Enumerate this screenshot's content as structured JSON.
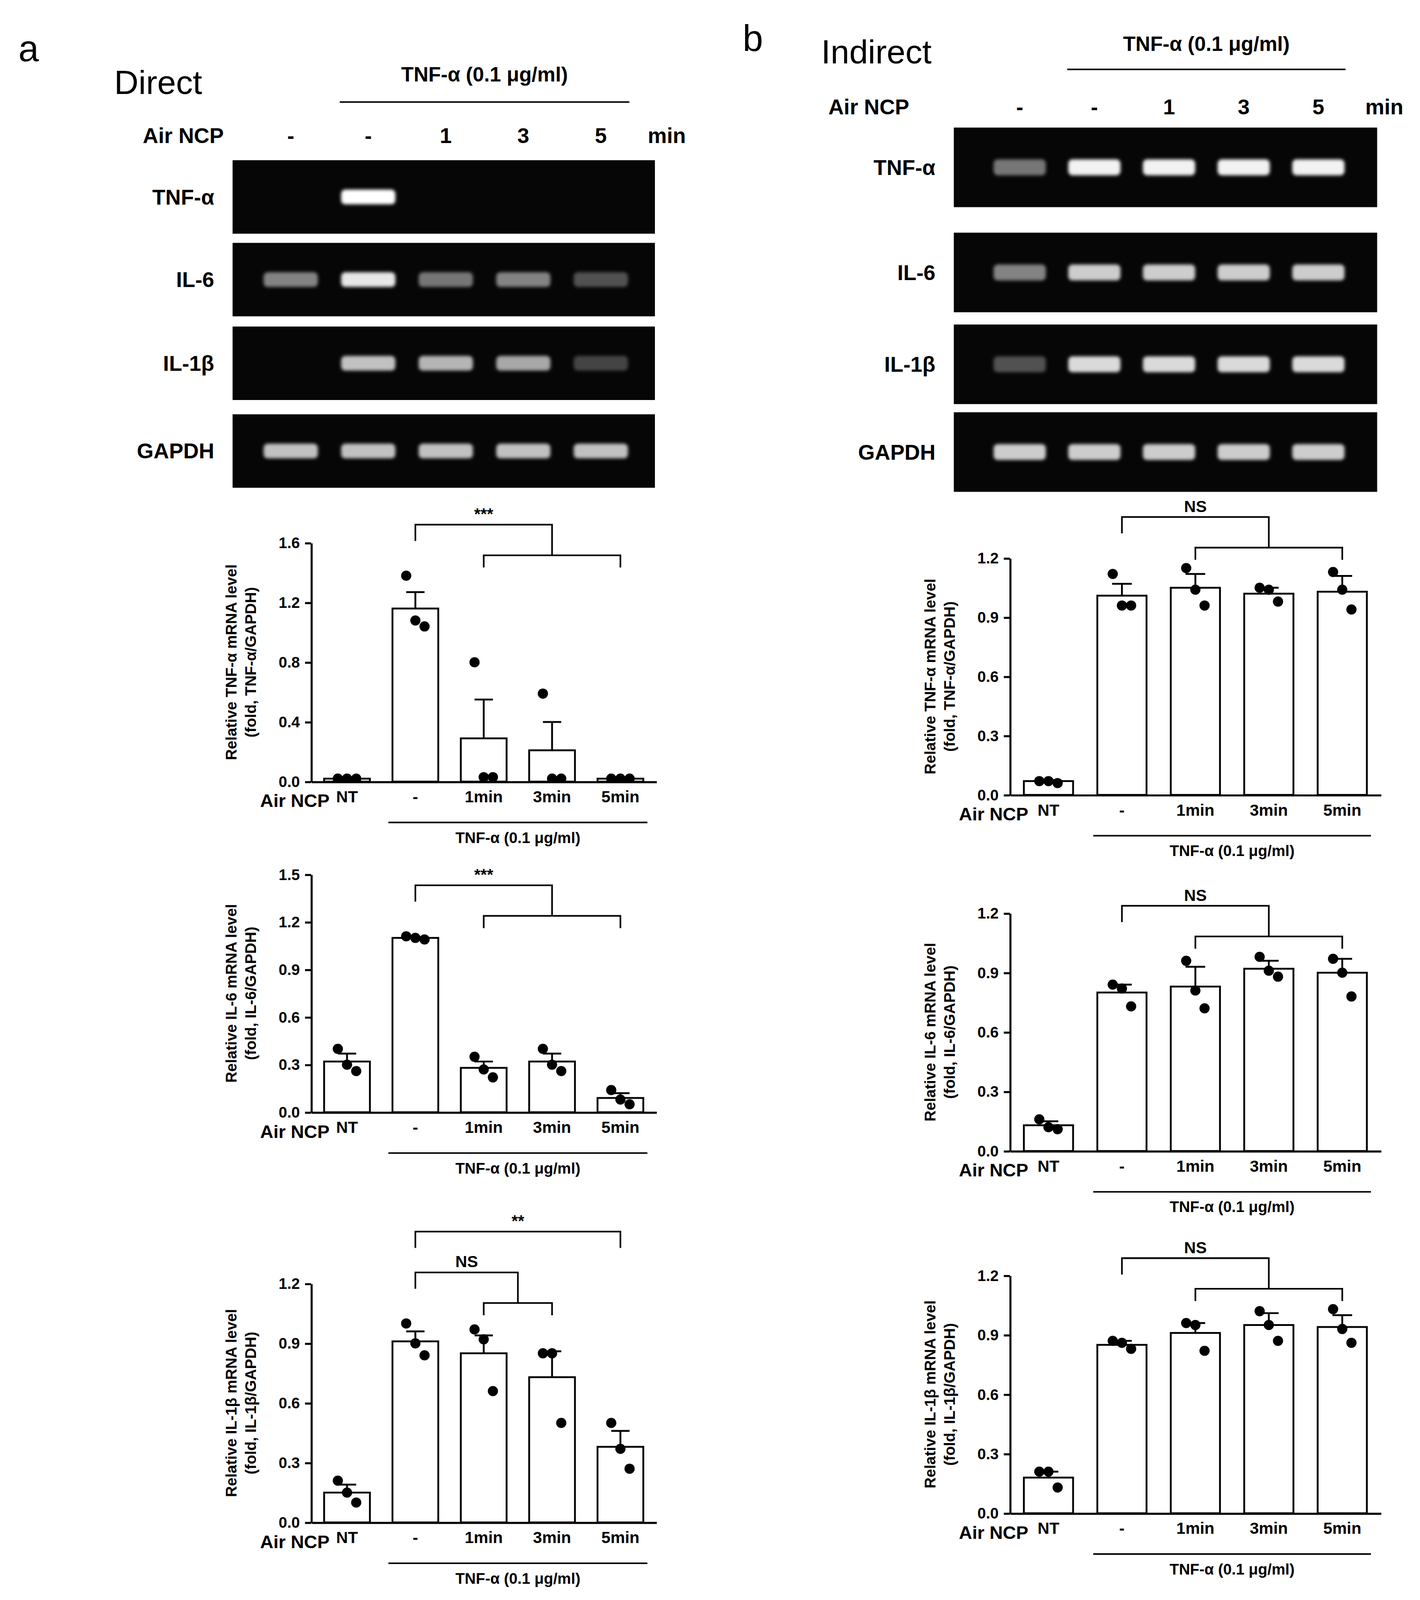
{
  "panels": [
    {
      "label": "a",
      "title": "Direct",
      "gel": {
        "treatment": "TNF-α (0.1 μg/ml)",
        "treated": [
          false,
          true,
          true,
          true,
          true
        ],
        "lane_title": "Air NCP",
        "lanes": [
          "-",
          "-",
          "1",
          "3",
          "5"
        ],
        "unit": "min",
        "rows": [
          {
            "name": "TNF-α",
            "intensity": [
              0,
              1.0,
              0,
              0,
              0
            ]
          },
          {
            "name": "IL-6",
            "intensity": [
              0.5,
              0.9,
              0.45,
              0.5,
              0.3
            ]
          },
          {
            "name": "IL-1β",
            "intensity": [
              0,
              0.75,
              0.7,
              0.65,
              0.25
            ]
          },
          {
            "name": "GAPDH",
            "intensity": [
              0.75,
              0.75,
              0.75,
              0.75,
              0.75
            ]
          }
        ]
      }
    },
    {
      "label": "b",
      "title": "Indirect",
      "gel": {
        "treatment": "TNF-α (0.1 μg/ml)",
        "treated": [
          false,
          true,
          true,
          true,
          true
        ],
        "lane_title": "Air NCP",
        "lanes": [
          "-",
          "-",
          "1",
          "3",
          "5"
        ],
        "unit": "min",
        "rows": [
          {
            "name": "TNF-α",
            "intensity": [
              0.45,
              0.95,
              0.95,
              0.95,
              0.95
            ]
          },
          {
            "name": "IL-6",
            "intensity": [
              0.5,
              0.8,
              0.8,
              0.8,
              0.8
            ]
          },
          {
            "name": "IL-1β",
            "intensity": [
              0.3,
              0.85,
              0.85,
              0.85,
              0.85
            ]
          },
          {
            "name": "GAPDH",
            "intensity": [
              0.8,
              0.8,
              0.8,
              0.8,
              0.8
            ]
          }
        ]
      }
    }
  ],
  "chart_data": [
    {
      "type": "bar",
      "ylabel": [
        "Relative TNF-α mRNA level",
        "(fold, TNF-α/GAPDH)"
      ],
      "xlabel": "Air NCP",
      "categories": [
        "NT",
        "-",
        "1min",
        "3min",
        "5min"
      ],
      "values": [
        0.02,
        1.16,
        0.29,
        0.21,
        0.02
      ],
      "errors": [
        0.003,
        0.11,
        0.26,
        0.19,
        0.003
      ],
      "points": [
        [
          0.02,
          0.02,
          0.02
        ],
        [
          1.38,
          1.08,
          1.04
        ],
        [
          0.8,
          0.03,
          0.03
        ],
        [
          0.59,
          0.02,
          0.02
        ],
        [
          0.02,
          0.02,
          0.02
        ]
      ],
      "color": "#ffffff",
      "ylim": [
        0,
        1.6
      ],
      "yticks": [
        {
          "value": 0,
          "label": "0.0"
        },
        0.4,
        0.8,
        1.2,
        1.6
      ],
      "xgroup": {
        "label": "TNF-α (0.1 μg/ml)",
        "categories": [
          "-",
          "1min",
          "3min",
          "5min"
        ]
      },
      "annotations": [
        {
          "text": "***",
          "from": "-",
          "to": [
            "1min",
            "5min"
          ]
        }
      ]
    },
    {
      "type": "bar",
      "ylabel": [
        "Relative IL-6 mRNA level",
        "(fold, IL-6/GAPDH)"
      ],
      "xlabel": "Air NCP",
      "categories": [
        "NT",
        "-",
        "1min",
        "3min",
        "5min"
      ],
      "values": [
        0.32,
        1.1,
        0.28,
        0.32,
        0.09
      ],
      "errors": [
        0.05,
        0.006,
        0.04,
        0.05,
        0.03
      ],
      "points": [
        [
          0.4,
          0.3,
          0.26
        ],
        [
          1.11,
          1.1,
          1.09
        ],
        [
          0.35,
          0.27,
          0.22
        ],
        [
          0.4,
          0.3,
          0.26
        ],
        [
          0.14,
          0.08,
          0.05
        ]
      ],
      "color": "#ffffff",
      "ylim": [
        0,
        1.5
      ],
      "yticks": [
        {
          "value": 0,
          "label": "0.0"
        },
        0.3,
        0.6,
        0.9,
        1.2,
        1.5
      ],
      "xgroup": {
        "label": "TNF-α (0.1 μg/ml)",
        "categories": [
          "-",
          "1min",
          "3min",
          "5min"
        ]
      },
      "annotations": [
        {
          "text": "***",
          "from": "-",
          "to": [
            "1min",
            "5min"
          ]
        }
      ]
    },
    {
      "type": "bar",
      "ylabel": [
        "Relative IL-1β mRNA level",
        "(fold, IL-1β/GAPDH)"
      ],
      "xlabel": "Air NCP",
      "categories": [
        "NT",
        "-",
        "1min",
        "3min",
        "5min"
      ],
      "values": [
        0.15,
        0.91,
        0.85,
        0.73,
        0.38
      ],
      "errors": [
        0.04,
        0.05,
        0.09,
        0.13,
        0.08
      ],
      "points": [
        [
          0.21,
          0.15,
          0.1
        ],
        [
          1.0,
          0.9,
          0.84
        ],
        [
          0.97,
          0.92,
          0.66
        ],
        [
          0.85,
          0.85,
          0.5
        ],
        [
          0.5,
          0.37,
          0.27
        ]
      ],
      "color": "#ffffff",
      "ylim": [
        0,
        1.2
      ],
      "yticks": [
        {
          "value": 0,
          "label": "0.0"
        },
        0.3,
        0.6,
        0.9,
        1.2
      ],
      "xgroup": {
        "label": "TNF-α (0.1 μg/ml)",
        "categories": [
          "-",
          "1min",
          "3min",
          "5min"
        ]
      },
      "annotations": [
        {
          "text": "NS",
          "from": "-",
          "to": [
            "1min",
            "3min"
          ]
        },
        {
          "text": "**",
          "from": "-",
          "to": [
            "5min"
          ]
        }
      ]
    },
    {
      "type": "bar",
      "ylabel": [
        "Relative TNF-α mRNA level",
        "(fold, TNF-α/GAPDH)"
      ],
      "xlabel": "Air NCP",
      "categories": [
        "NT",
        "-",
        "1min",
        "3min",
        "5min"
      ],
      "values": [
        0.07,
        1.01,
        1.05,
        1.02,
        1.03
      ],
      "errors": [
        0.005,
        0.06,
        0.07,
        0.03,
        0.08
      ],
      "points": [
        [
          0.07,
          0.07,
          0.06
        ],
        [
          1.12,
          0.96,
          0.96
        ],
        [
          1.15,
          1.04,
          0.96
        ],
        [
          1.05,
          1.04,
          0.98
        ],
        [
          1.13,
          1.04,
          0.94
        ]
      ],
      "color": "#ffffff",
      "ylim": [
        0,
        1.2
      ],
      "yticks": [
        {
          "value": 0,
          "label": "0.0"
        },
        0.3,
        0.6,
        0.9,
        1.2
      ],
      "xgroup": {
        "label": "TNF-α (0.1 μg/ml)",
        "categories": [
          "-",
          "1min",
          "3min",
          "5min"
        ]
      },
      "annotations": [
        {
          "text": "NS",
          "from": "-",
          "to": [
            "1min",
            "5min"
          ]
        }
      ]
    },
    {
      "type": "bar",
      "ylabel": [
        "Relative IL-6 mRNA level",
        "(fold, IL-6/GAPDH)"
      ],
      "xlabel": "Air NCP",
      "categories": [
        "NT",
        "-",
        "1min",
        "3min",
        "5min"
      ],
      "values": [
        0.13,
        0.8,
        0.83,
        0.92,
        0.9
      ],
      "errors": [
        0.02,
        0.04,
        0.1,
        0.04,
        0.07
      ],
      "points": [
        [
          0.16,
          0.12,
          0.11
        ],
        [
          0.84,
          0.82,
          0.73
        ],
        [
          0.96,
          0.81,
          0.72
        ],
        [
          0.98,
          0.91,
          0.88
        ],
        [
          0.97,
          0.9,
          0.78
        ]
      ],
      "color": "#ffffff",
      "ylim": [
        0,
        1.2
      ],
      "yticks": [
        {
          "value": 0,
          "label": "0.0"
        },
        0.3,
        0.6,
        0.9,
        1.2
      ],
      "xgroup": {
        "label": "TNF-α (0.1 μg/ml)",
        "categories": [
          "-",
          "1min",
          "3min",
          "5min"
        ]
      },
      "annotations": [
        {
          "text": "NS",
          "from": "-",
          "to": [
            "1min",
            "5min"
          ]
        }
      ]
    },
    {
      "type": "bar",
      "ylabel": [
        "Relative IL-1β mRNA level",
        "(fold, IL-1β/GAPDH)"
      ],
      "xlabel": "Air NCP",
      "categories": [
        "NT",
        "-",
        "1min",
        "3min",
        "5min"
      ],
      "values": [
        0.18,
        0.85,
        0.91,
        0.95,
        0.94
      ],
      "errors": [
        0.03,
        0.02,
        0.05,
        0.06,
        0.06
      ],
      "points": [
        [
          0.21,
          0.21,
          0.13
        ],
        [
          0.87,
          0.86,
          0.83
        ],
        [
          0.96,
          0.95,
          0.82
        ],
        [
          1.02,
          0.95,
          0.87
        ],
        [
          1.03,
          0.93,
          0.86
        ]
      ],
      "color": "#ffffff",
      "ylim": [
        0,
        1.2
      ],
      "yticks": [
        {
          "value": 0,
          "label": "0.0"
        },
        0.3,
        0.6,
        0.9,
        1.2
      ],
      "xgroup": {
        "label": "TNF-α (0.1 μg/ml)",
        "categories": [
          "-",
          "1min",
          "3min",
          "5min"
        ]
      },
      "annotations": [
        {
          "text": "NS",
          "from": "-",
          "to": [
            "1min",
            "5min"
          ]
        }
      ]
    }
  ]
}
